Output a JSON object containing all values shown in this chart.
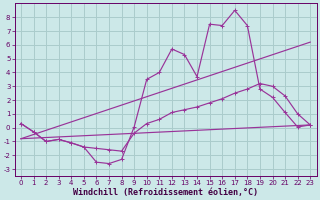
{
  "background_color": "#cce8e8",
  "grid_color": "#aacccc",
  "line_color": "#993399",
  "xlabel": "Windchill (Refroidissement éolien,°C)",
  "xlim": [
    -0.5,
    23.5
  ],
  "ylim": [
    -3.5,
    9.0
  ],
  "xticks": [
    0,
    1,
    2,
    3,
    4,
    5,
    6,
    7,
    8,
    9,
    10,
    11,
    12,
    13,
    14,
    15,
    16,
    17,
    18,
    19,
    20,
    21,
    22,
    23
  ],
  "yticks": [
    -3,
    -2,
    -1,
    0,
    1,
    2,
    3,
    4,
    5,
    6,
    7,
    8
  ],
  "line1_x": [
    0,
    1,
    2,
    3,
    4,
    5,
    6,
    7,
    8,
    9,
    10,
    11,
    12,
    13,
    14,
    15,
    16,
    17,
    18,
    19,
    20,
    21,
    22,
    23
  ],
  "line1_y": [
    0.3,
    -0.3,
    -1.0,
    -0.85,
    -1.1,
    -1.4,
    -2.5,
    -2.6,
    -2.3,
    0.05,
    3.5,
    4.0,
    5.7,
    5.3,
    3.7,
    7.5,
    7.4,
    8.5,
    7.4,
    2.8,
    2.2,
    1.1,
    0.05,
    0.2
  ],
  "line2_x": [
    0,
    1,
    2,
    3,
    4,
    5,
    6,
    7,
    8,
    9,
    10,
    11,
    12,
    13,
    14,
    15,
    16,
    17,
    18,
    19,
    20,
    21,
    22,
    23
  ],
  "line2_y": [
    0.3,
    -0.3,
    -1.0,
    -0.85,
    -1.1,
    -1.4,
    -1.5,
    -1.6,
    -1.7,
    -0.4,
    0.3,
    0.6,
    1.1,
    1.3,
    1.5,
    1.8,
    2.1,
    2.5,
    2.8,
    3.2,
    3.0,
    2.3,
    1.0,
    0.2
  ],
  "line3_x": [
    0,
    23
  ],
  "line3_y": [
    -0.8,
    6.2
  ],
  "line4_x": [
    0,
    23
  ],
  "line4_y": [
    -0.8,
    0.2
  ],
  "tick_fontsize": 5.0,
  "label_fontsize": 6.0
}
